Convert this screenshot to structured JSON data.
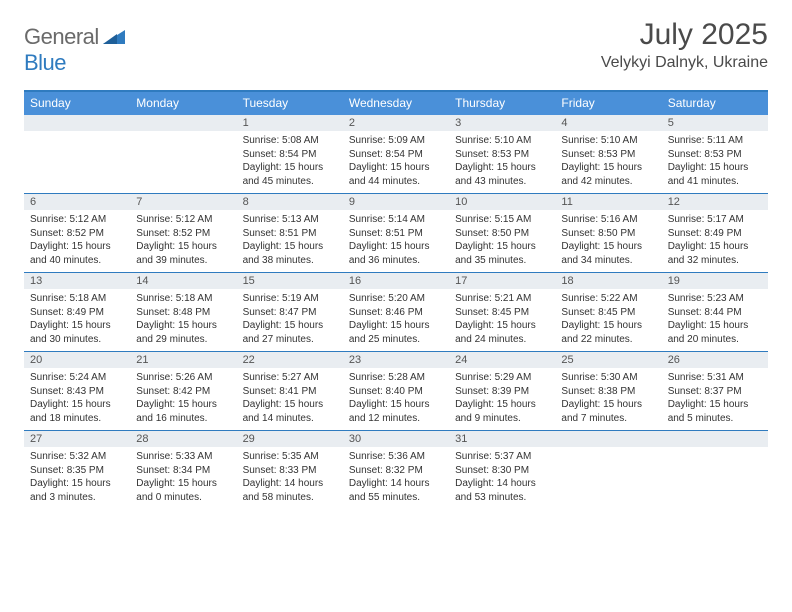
{
  "brand": {
    "part1": "General",
    "part2": "Blue"
  },
  "title": "July 2025",
  "location": "Velykyi Dalnyk, Ukraine",
  "colors": {
    "header_bg": "#4a90d9",
    "accent_border": "#2f7bbf",
    "daynum_bg": "#e9edf1",
    "text": "#333333",
    "title_text": "#4a4a4a",
    "logo_gray": "#6a6a6a",
    "logo_blue": "#2f7bbf"
  },
  "day_headers": [
    "Sunday",
    "Monday",
    "Tuesday",
    "Wednesday",
    "Thursday",
    "Friday",
    "Saturday"
  ],
  "weeks": [
    [
      null,
      null,
      {
        "n": "1",
        "sr": "5:08 AM",
        "ss": "8:54 PM",
        "dl": "15 hours and 45 minutes."
      },
      {
        "n": "2",
        "sr": "5:09 AM",
        "ss": "8:54 PM",
        "dl": "15 hours and 44 minutes."
      },
      {
        "n": "3",
        "sr": "5:10 AM",
        "ss": "8:53 PM",
        "dl": "15 hours and 43 minutes."
      },
      {
        "n": "4",
        "sr": "5:10 AM",
        "ss": "8:53 PM",
        "dl": "15 hours and 42 minutes."
      },
      {
        "n": "5",
        "sr": "5:11 AM",
        "ss": "8:53 PM",
        "dl": "15 hours and 41 minutes."
      }
    ],
    [
      {
        "n": "6",
        "sr": "5:12 AM",
        "ss": "8:52 PM",
        "dl": "15 hours and 40 minutes."
      },
      {
        "n": "7",
        "sr": "5:12 AM",
        "ss": "8:52 PM",
        "dl": "15 hours and 39 minutes."
      },
      {
        "n": "8",
        "sr": "5:13 AM",
        "ss": "8:51 PM",
        "dl": "15 hours and 38 minutes."
      },
      {
        "n": "9",
        "sr": "5:14 AM",
        "ss": "8:51 PM",
        "dl": "15 hours and 36 minutes."
      },
      {
        "n": "10",
        "sr": "5:15 AM",
        "ss": "8:50 PM",
        "dl": "15 hours and 35 minutes."
      },
      {
        "n": "11",
        "sr": "5:16 AM",
        "ss": "8:50 PM",
        "dl": "15 hours and 34 minutes."
      },
      {
        "n": "12",
        "sr": "5:17 AM",
        "ss": "8:49 PM",
        "dl": "15 hours and 32 minutes."
      }
    ],
    [
      {
        "n": "13",
        "sr": "5:18 AM",
        "ss": "8:49 PM",
        "dl": "15 hours and 30 minutes."
      },
      {
        "n": "14",
        "sr": "5:18 AM",
        "ss": "8:48 PM",
        "dl": "15 hours and 29 minutes."
      },
      {
        "n": "15",
        "sr": "5:19 AM",
        "ss": "8:47 PM",
        "dl": "15 hours and 27 minutes."
      },
      {
        "n": "16",
        "sr": "5:20 AM",
        "ss": "8:46 PM",
        "dl": "15 hours and 25 minutes."
      },
      {
        "n": "17",
        "sr": "5:21 AM",
        "ss": "8:45 PM",
        "dl": "15 hours and 24 minutes."
      },
      {
        "n": "18",
        "sr": "5:22 AM",
        "ss": "8:45 PM",
        "dl": "15 hours and 22 minutes."
      },
      {
        "n": "19",
        "sr": "5:23 AM",
        "ss": "8:44 PM",
        "dl": "15 hours and 20 minutes."
      }
    ],
    [
      {
        "n": "20",
        "sr": "5:24 AM",
        "ss": "8:43 PM",
        "dl": "15 hours and 18 minutes."
      },
      {
        "n": "21",
        "sr": "5:26 AM",
        "ss": "8:42 PM",
        "dl": "15 hours and 16 minutes."
      },
      {
        "n": "22",
        "sr": "5:27 AM",
        "ss": "8:41 PM",
        "dl": "15 hours and 14 minutes."
      },
      {
        "n": "23",
        "sr": "5:28 AM",
        "ss": "8:40 PM",
        "dl": "15 hours and 12 minutes."
      },
      {
        "n": "24",
        "sr": "5:29 AM",
        "ss": "8:39 PM",
        "dl": "15 hours and 9 minutes."
      },
      {
        "n": "25",
        "sr": "5:30 AM",
        "ss": "8:38 PM",
        "dl": "15 hours and 7 minutes."
      },
      {
        "n": "26",
        "sr": "5:31 AM",
        "ss": "8:37 PM",
        "dl": "15 hours and 5 minutes."
      }
    ],
    [
      {
        "n": "27",
        "sr": "5:32 AM",
        "ss": "8:35 PM",
        "dl": "15 hours and 3 minutes."
      },
      {
        "n": "28",
        "sr": "5:33 AM",
        "ss": "8:34 PM",
        "dl": "15 hours and 0 minutes."
      },
      {
        "n": "29",
        "sr": "5:35 AM",
        "ss": "8:33 PM",
        "dl": "14 hours and 58 minutes."
      },
      {
        "n": "30",
        "sr": "5:36 AM",
        "ss": "8:32 PM",
        "dl": "14 hours and 55 minutes."
      },
      {
        "n": "31",
        "sr": "5:37 AM",
        "ss": "8:30 PM",
        "dl": "14 hours and 53 minutes."
      },
      null,
      null
    ]
  ],
  "labels": {
    "sunrise": "Sunrise:",
    "sunset": "Sunset:",
    "daylight": "Daylight:"
  }
}
